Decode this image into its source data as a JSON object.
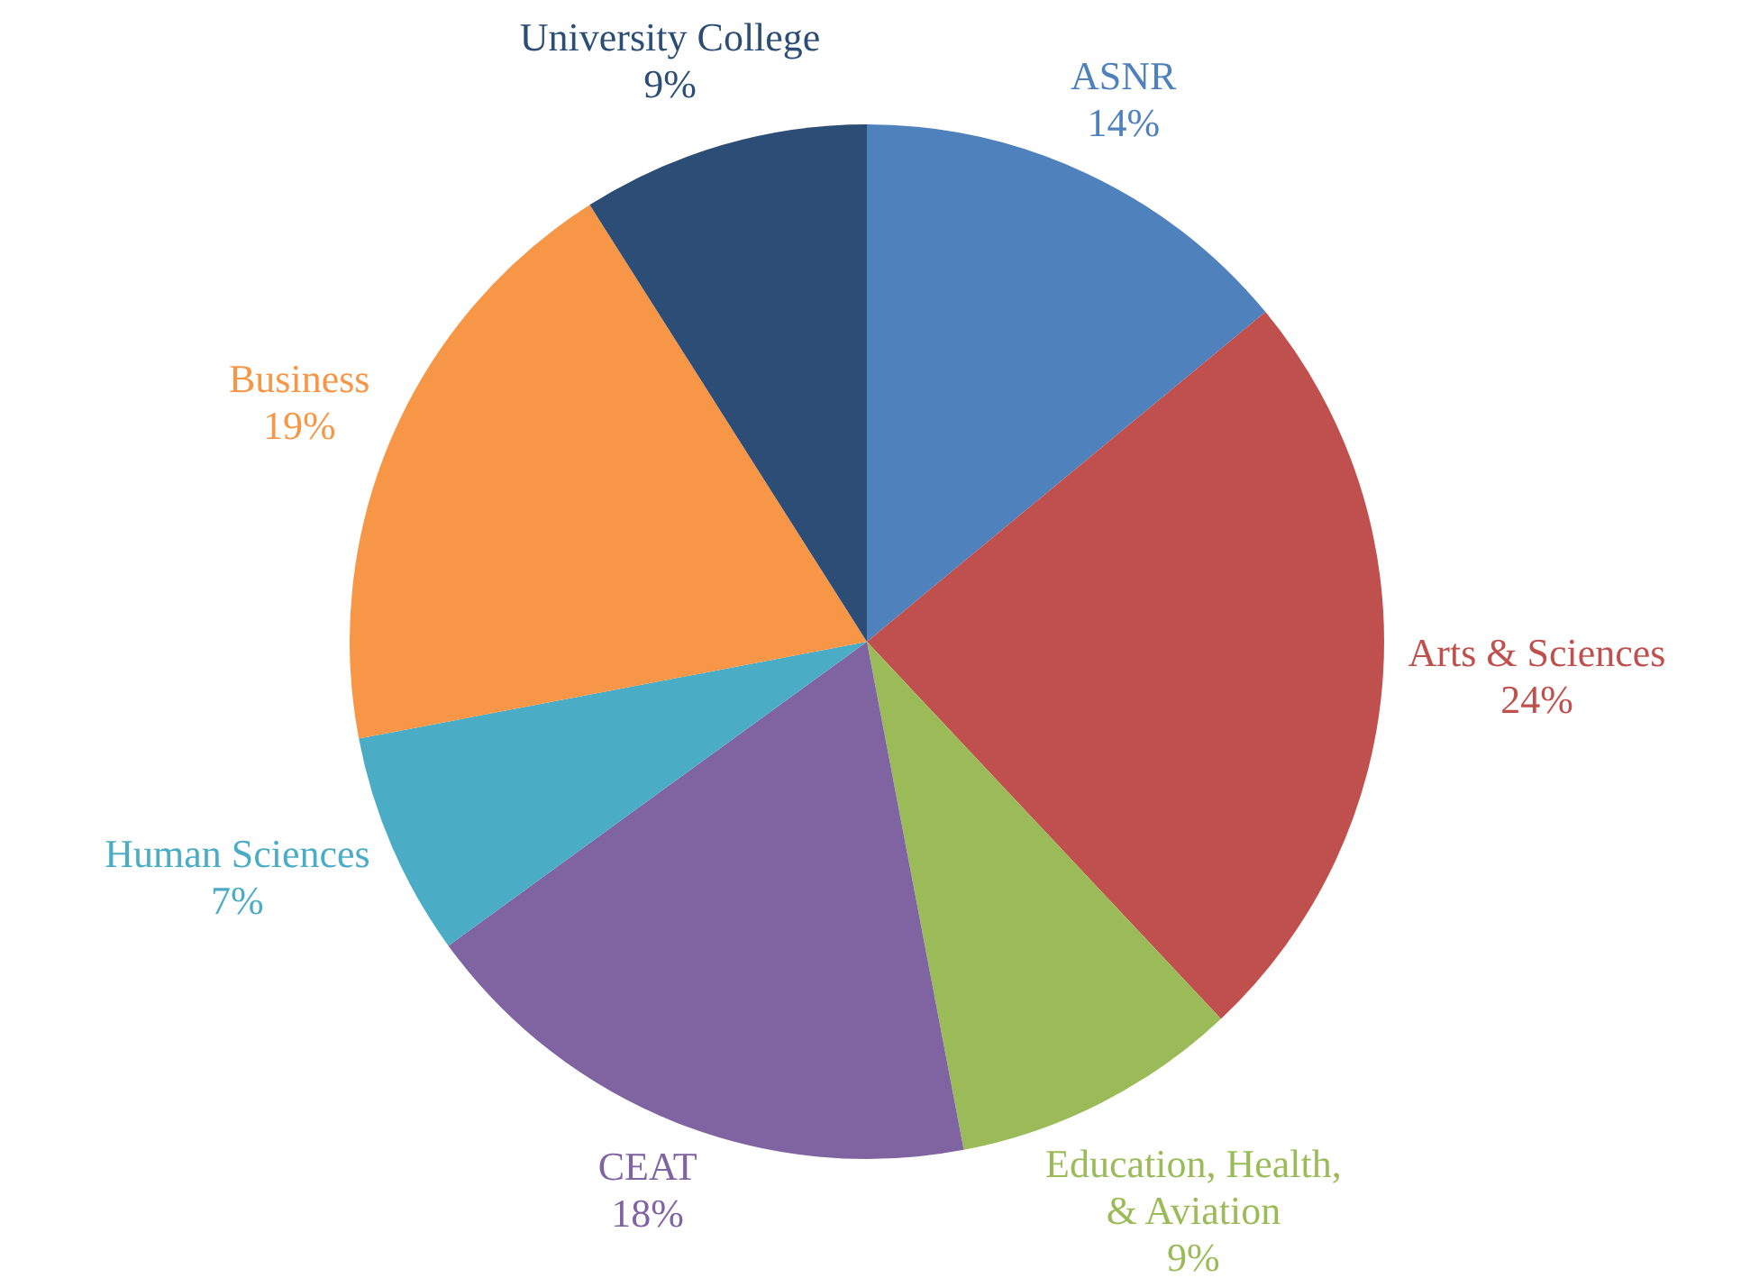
{
  "chart_data": {
    "type": "pie",
    "categories": [
      "ASNR",
      "Arts & Sciences",
      "Education, Health, & Aviation",
      "CEAT",
      "Human Sciences",
      "Business",
      "University College"
    ],
    "values": [
      14,
      24,
      9,
      18,
      7,
      19,
      9
    ],
    "value_labels": [
      "14%",
      "24%",
      "9%",
      "18%",
      "7%",
      "19%",
      "9%"
    ],
    "colors": [
      "#4f81bd",
      "#c0504d",
      "#9bbb59",
      "#8064a2",
      "#4bacc6",
      "#f79646",
      "#2c4d75"
    ],
    "legend": false
  }
}
